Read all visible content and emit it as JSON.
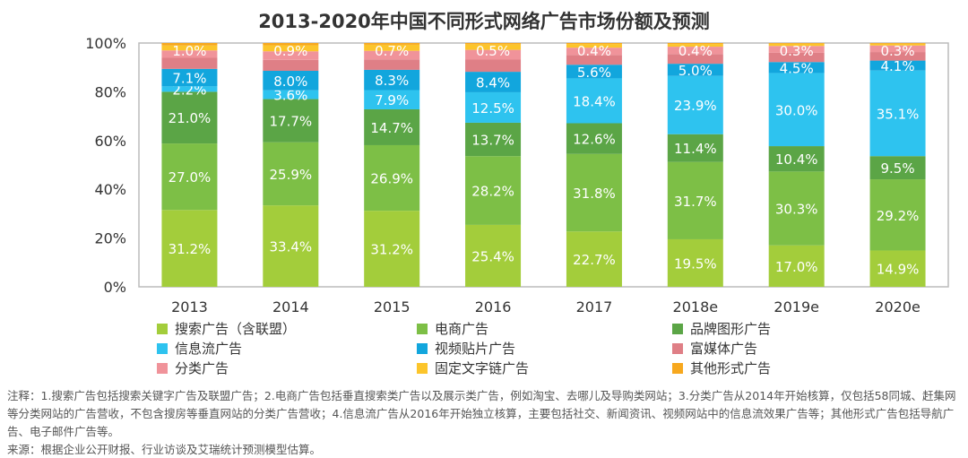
{
  "chart_data": {
    "type": "bar",
    "stacked": true,
    "title": "2013-2020年中国不同形式网络广告市场份额及预测",
    "categories": [
      "2013",
      "2014",
      "2015",
      "2016",
      "2017",
      "2018e",
      "2019e",
      "2020e"
    ],
    "yticks": [
      "0%",
      "20%",
      "40%",
      "60%",
      "80%",
      "100%"
    ],
    "ylim": [
      0,
      100
    ],
    "series": [
      {
        "name": "搜索广告（含联盟）",
        "color": "#a3cd3b",
        "labeled": true,
        "values": [
          31.2,
          33.4,
          31.2,
          25.4,
          22.7,
          19.5,
          17.0,
          14.9
        ]
      },
      {
        "name": "电商广告",
        "color": "#7dbf46",
        "labeled": true,
        "values": [
          27.0,
          25.9,
          26.9,
          28.2,
          31.8,
          31.7,
          30.3,
          29.2
        ]
      },
      {
        "name": "品牌图形广告",
        "color": "#5ba546",
        "labeled": true,
        "values": [
          21.0,
          17.7,
          14.7,
          13.7,
          12.6,
          11.4,
          10.4,
          9.5
        ]
      },
      {
        "name": "信息流广告",
        "color": "#2ec3ef",
        "labeled": true,
        "values": [
          2.2,
          3.6,
          7.9,
          12.5,
          18.4,
          23.9,
          30.0,
          35.1
        ]
      },
      {
        "name": "视频贴片广告",
        "color": "#12a6dd",
        "labeled": true,
        "values": [
          7.1,
          8.0,
          8.3,
          8.4,
          5.6,
          5.0,
          4.5,
          4.1
        ]
      },
      {
        "name": "富媒体广告",
        "color": "#df7f86",
        "labeled": false,
        "values": [
          4.5,
          4.5,
          4.3,
          5.0,
          4.0,
          4.0,
          3.8,
          3.5
        ]
      },
      {
        "name": "分类广告",
        "color": "#f0939a",
        "labeled": false,
        "values": [
          3.0,
          3.5,
          3.5,
          4.0,
          3.0,
          3.0,
          2.8,
          2.7
        ]
      },
      {
        "name": "固定文字链广告",
        "color": "#fcc52b",
        "labeled": false,
        "values": [
          2.0,
          2.5,
          2.5,
          2.3,
          1.5,
          1.1,
          0.9,
          0.7
        ]
      },
      {
        "name": "其他形式广告",
        "color": "#f7a81e",
        "labeled": true,
        "values": [
          1.0,
          0.9,
          0.7,
          0.5,
          0.4,
          0.4,
          0.3,
          0.3
        ]
      }
    ],
    "legend": "bottom"
  },
  "notes": {
    "line1": "注释：1.搜索广告包括搜索关键字广告及联盟广告；2.电商广告包括垂直搜索类广告以及展示类广告，例如淘宝、去哪儿及导购类网站；3.分类广告从2014年开始核算，仅包括58同城、赶集网等分类网站的广告营收，不包含搜房等垂直网站的分类广告营收；4.信息流广告从2016年开始独立核算，主要包括社交、新闻资讯、视频网站中的信息流效果广告等；其他形式广告包括导航广告、电子邮件广告等。",
    "source": "来源：根据企业公开财报、行业访谈及艾瑞统计预测模型估算。"
  }
}
